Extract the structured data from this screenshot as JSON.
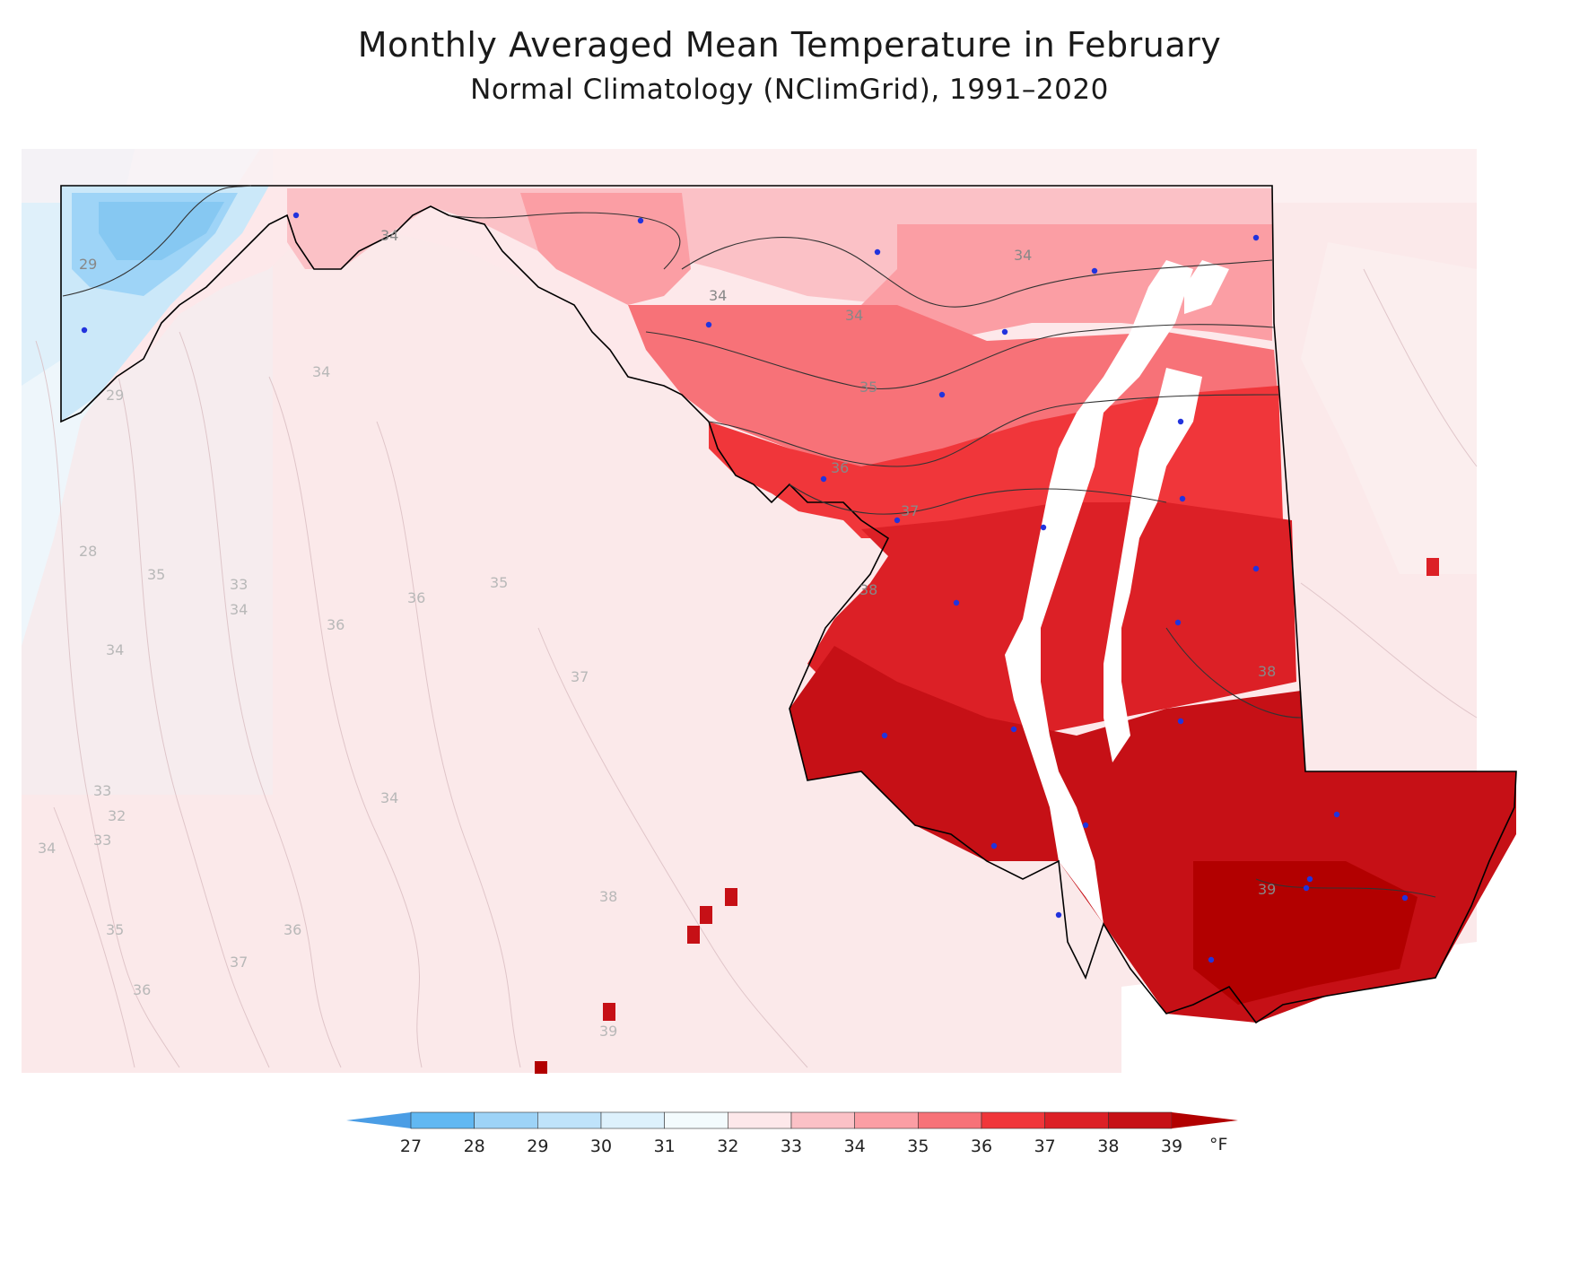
{
  "title": "Monthly Averaged Mean Temperature in February",
  "subtitle": "Normal Climatology (NClimGrid), 1991–2020",
  "legend": {
    "unit": "°F",
    "ticks": [
      "27",
      "28",
      "29",
      "30",
      "31",
      "32",
      "33",
      "34",
      "35",
      "36",
      "37",
      "38",
      "39"
    ],
    "colors": [
      "#61b8f2",
      "#9dd3f7",
      "#bfe3fa",
      "#ddf1fc",
      "#f3fbfd",
      "#fde8ea",
      "#fbc1c6",
      "#fb9ea4",
      "#f77278",
      "#f0363a",
      "#dc2026",
      "#c61016"
    ],
    "under_color": "#4a9de5",
    "over_color": "#b20000"
  },
  "contour_labels_state": [
    "29",
    "34",
    "34",
    "34",
    "34",
    "35",
    "36",
    "37",
    "38",
    "38",
    "39"
  ],
  "contour_labels_outside": [
    "34",
    "29",
    "28",
    "35",
    "33",
    "34",
    "36",
    "36",
    "35",
    "34",
    "37",
    "34",
    "33",
    "32",
    "33",
    "34",
    "35",
    "36",
    "37",
    "36",
    "38",
    "39"
  ],
  "station_markers": 28
}
